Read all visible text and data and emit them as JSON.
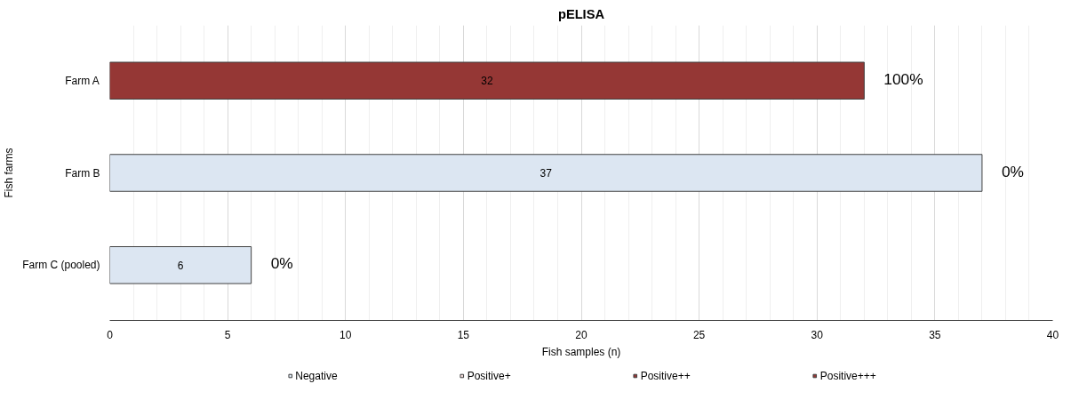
{
  "chart_data": {
    "type": "bar",
    "orientation": "horizontal",
    "stacked": true,
    "title": "pELISA",
    "xlabel": "Fish samples (n)",
    "ylabel": "Fish farms",
    "categories": [
      "Farm A",
      "Farm B",
      "Farm C (pooled)"
    ],
    "series": [
      {
        "name": "Negative",
        "color": "#dce6f2",
        "values": [
          null,
          37,
          6
        ],
        "value_labels": [
          null,
          "37",
          "6"
        ]
      },
      {
        "name": "Positive+",
        "color": "#f2dcdb",
        "values": [
          null,
          null,
          null
        ]
      },
      {
        "name": "Positive++",
        "color": "#943634",
        "values": [
          null,
          null,
          null
        ]
      },
      {
        "name": "Positive+++",
        "color": "#953735",
        "values": [
          32,
          null,
          null
        ],
        "value_labels": [
          "32",
          null,
          null
        ]
      }
    ],
    "xlim": [
      0,
      40
    ],
    "xticks": [
      0,
      5,
      10,
      15,
      20,
      25,
      30,
      35,
      40
    ],
    "grid": "x",
    "legend": "bottom",
    "annotations": [
      {
        "text": "100%",
        "x": 32,
        "y": "Farm A"
      },
      {
        "text": "0%",
        "x": 37,
        "y": "Farm B"
      },
      {
        "text": "0%",
        "x": 6,
        "y": "Farm C (pooled)"
      }
    ]
  }
}
